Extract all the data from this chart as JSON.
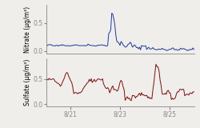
{
  "nitrate_color": "#1a3a9e",
  "sulfate_color": "#7a0e0e",
  "nitrate_ylabel": "Nitrate (μg/m³)",
  "sulfate_ylabel": "Sulfate (μg/m³)",
  "xtick_labels": [
    "8/21",
    "8/23",
    "8/25"
  ],
  "nitrate_ylim": [
    -0.04,
    0.82
  ],
  "sulfate_ylim": [
    -0.04,
    0.92
  ],
  "nitrate_yticks": [
    0.0,
    0.5
  ],
  "sulfate_yticks": [
    0.0,
    0.5
  ],
  "background_color": "#f0eeeb",
  "linewidth": 0.7
}
